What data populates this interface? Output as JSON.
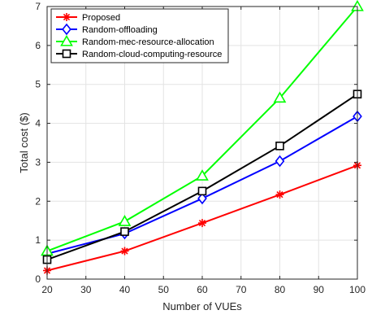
{
  "chart_data": {
    "type": "line",
    "title": "",
    "xlabel": "Number of VUEs",
    "ylabel": "Total cost ($)",
    "x": [
      20,
      40,
      60,
      80,
      100
    ],
    "xlim": [
      20,
      100
    ],
    "ylim": [
      0,
      7
    ],
    "xticks": [
      "20",
      "30",
      "40",
      "50",
      "60",
      "70",
      "80",
      "90",
      "100"
    ],
    "yticks": [
      "0",
      "1",
      "2",
      "3",
      "4",
      "5",
      "6",
      "7"
    ],
    "grid": true,
    "legend_position": "top-left",
    "series": [
      {
        "name": "Proposed",
        "color": "#ff0000",
        "marker": "asterisk",
        "values": [
          0.22,
          0.72,
          1.44,
          2.17,
          2.92
        ]
      },
      {
        "name": "Random-offloading",
        "color": "#0000ff",
        "marker": "diamond",
        "values": [
          0.65,
          1.17,
          2.07,
          3.03,
          4.18
        ]
      },
      {
        "name": "Random-mec-resource-allocation",
        "color": "#00ff00",
        "marker": "triangle",
        "values": [
          0.72,
          1.48,
          2.65,
          4.65,
          7.0
        ]
      },
      {
        "name": "Random-cloud-computing-resource",
        "color": "#000000",
        "marker": "square",
        "values": [
          0.5,
          1.22,
          2.26,
          3.42,
          4.75
        ]
      }
    ]
  }
}
